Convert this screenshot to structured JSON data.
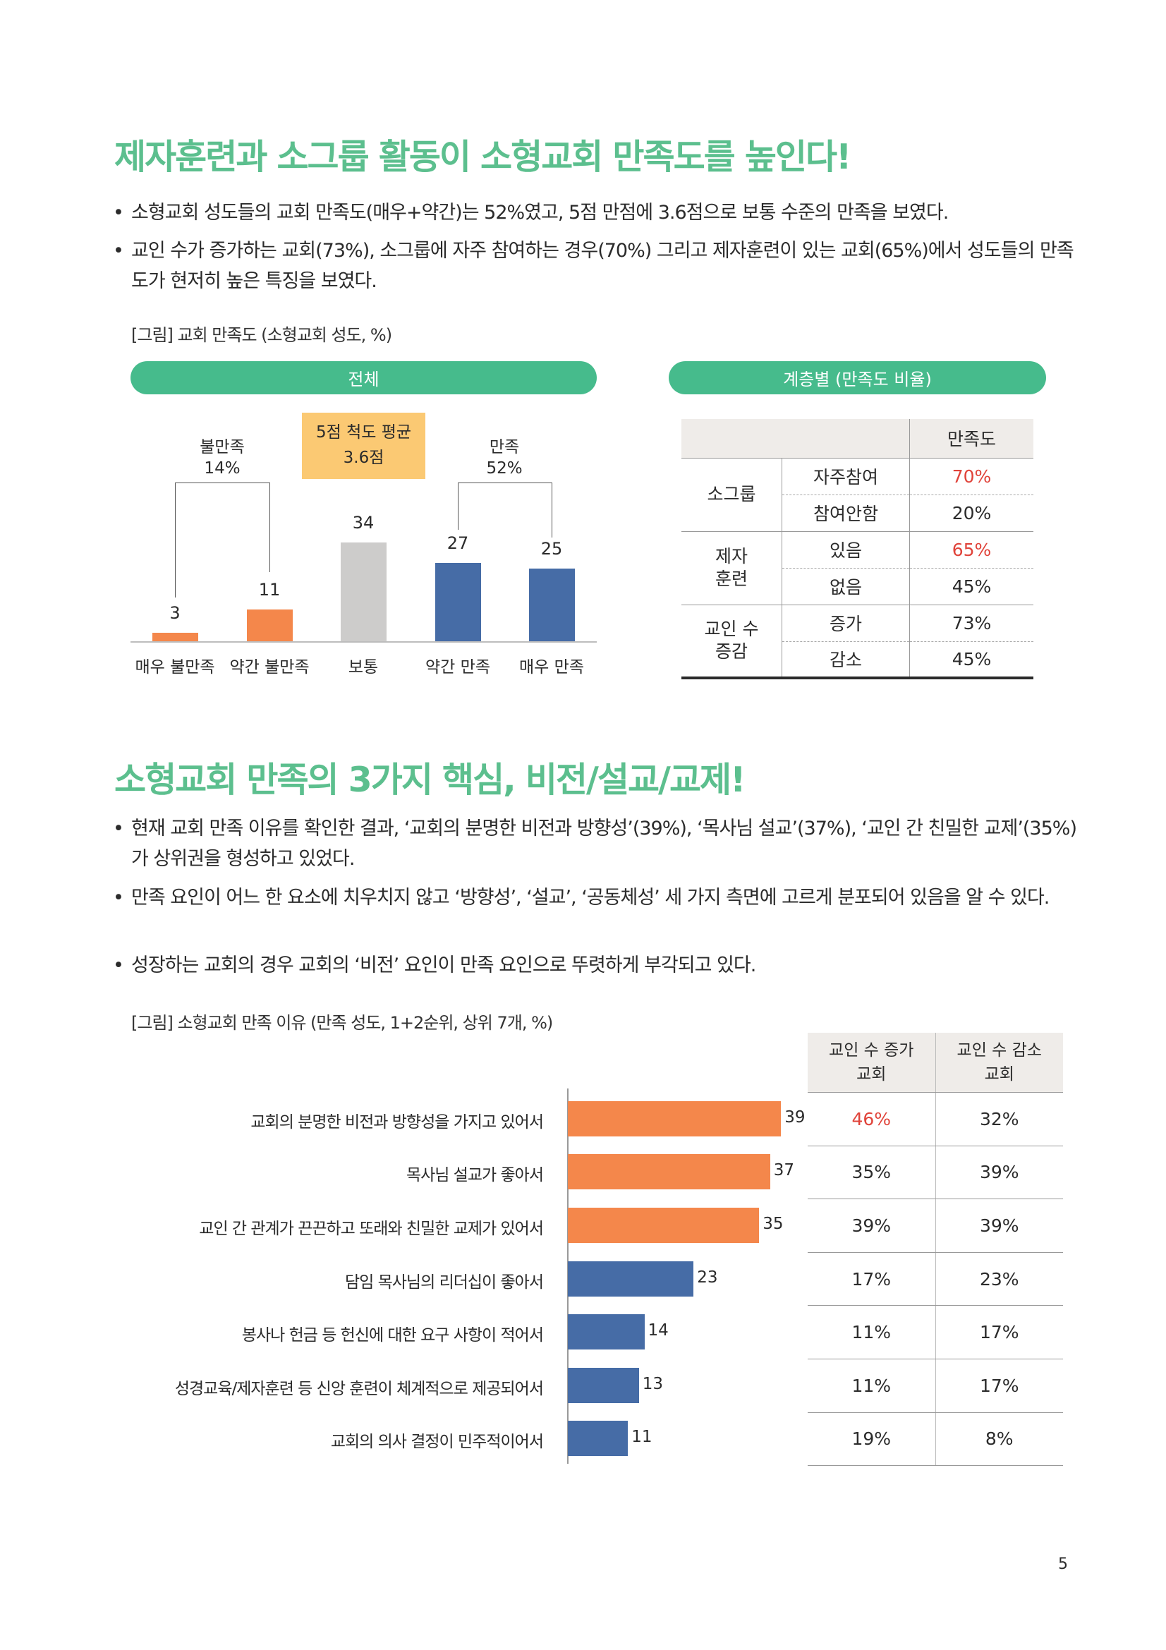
{
  "section1": {
    "title": "제자훈련과 소그룹 활동이 소형교회 만족도를 높인다!",
    "bullets": [
      "소형교회 성도들의 교회 만족도(매우+약간)는 52%였고, 5점 만점에 3.6점으로 보통 수준의 만족을 보였다.",
      "교인 수가 증가하는 교회(73%), 소그룹에 자주 참여하는 경우(70%) 그리고 제자훈련이 있는 교회(65%)에서 성도들의 만족도가 현저히 높은 특징을 보였다."
    ],
    "caption": "[그림] 교회 만족도 (소형교회 성도, %)",
    "pill_left": "전체",
    "pill_right": "계층별 (만족도 비율)",
    "avg_box": {
      "line1": "5점 척도 평균",
      "line2": "3.6점"
    },
    "groups": [
      {
        "label": "불만족",
        "value": "14%"
      },
      {
        "label": "만족",
        "value": "52%"
      }
    ],
    "strata_table": {
      "header": "만족도",
      "groups": [
        {
          "name": "소그룹",
          "rows": [
            {
              "label": "자주참여",
              "value": "70%",
              "highlight": true
            },
            {
              "label": "참여안함",
              "value": "20%",
              "highlight": false
            }
          ]
        },
        {
          "name": "제자\n훈련",
          "rows": [
            {
              "label": "있음",
              "value": "65%",
              "highlight": true
            },
            {
              "label": "없음",
              "value": "45%",
              "highlight": false
            }
          ]
        },
        {
          "name": "교인 수\n증감",
          "rows": [
            {
              "label": "증가",
              "value": "73%",
              "highlight": false
            },
            {
              "label": "감소",
              "value": "45%",
              "highlight": false
            }
          ]
        }
      ]
    }
  },
  "section2": {
    "title": "소형교회 만족의 3가지 핵심, 비전/설교/교제!",
    "bullets": [
      "현재 교회 만족 이유를 확인한 결과, ‘교회의 분명한 비전과 방향성’(39%), ‘목사님 설교’(37%), ‘교인 간 친밀한 교제’(35%)가 상위권을 형성하고 있었다.",
      "만족 요인이 어느 한 요소에 치우치지 않고 ‘방향성’, ‘설교’, ‘공동체성’ 세 가지 측면에 고르게 분포되어 있음을 알 수 있다.",
      "성장하는 교회의 경우 교회의 ‘비전’ 요인이 만족 요인으로 뚜렷하게 부각되고 있다."
    ],
    "caption": "[그림] 소형교회 만족 이유 (만족 성도, 1+2순위, 상위 7개, %)",
    "table_headers": [
      "교인 수 증가\n교회",
      "교인 수 감소\n교회"
    ],
    "table_rows": [
      {
        "inc": "46%",
        "dec": "32%",
        "highlight": true
      },
      {
        "inc": "35%",
        "dec": "39%",
        "highlight": false
      },
      {
        "inc": "39%",
        "dec": "39%",
        "highlight": false
      },
      {
        "inc": "17%",
        "dec": "23%",
        "highlight": false
      },
      {
        "inc": "11%",
        "dec": "17%",
        "highlight": false
      },
      {
        "inc": "11%",
        "dec": "17%",
        "highlight": false
      },
      {
        "inc": "19%",
        "dec": "8%",
        "highlight": false
      }
    ]
  },
  "page_number": "5",
  "colors": {
    "title": "#5cbf8e",
    "pill": "#46bb8c",
    "orange": "#f4874b",
    "blue": "#466ca6",
    "gray": "#cdcccb",
    "red": "#e0433a",
    "avg_box": "#fbc973",
    "table_header": "#efece9"
  },
  "chart_data": [
    {
      "type": "bar",
      "categories": [
        "매우 불만족",
        "약간 불만족",
        "보통",
        "약간 만족",
        "매우 만족"
      ],
      "values": [
        3,
        11,
        34,
        27,
        25
      ],
      "bar_colors": [
        "#f4874b",
        "#f4874b",
        "#cdcccb",
        "#466ca6",
        "#466ca6"
      ],
      "title": "",
      "xlabel": "",
      "ylabel": "",
      "ylim": [
        0,
        40
      ],
      "grid": false
    },
    {
      "type": "bar",
      "orientation": "horizontal",
      "categories": [
        "교회의 분명한 비전과 방향성을 가지고 있어서",
        "목사님 설교가 좋아서",
        "교인 간 관계가 끈끈하고 또래와 친밀한 교제가 있어서",
        "담임 목사님의 리더십이 좋아서",
        "봉사나 헌금 등 헌신에 대한 요구 사항이 적어서",
        "성경교육/제자훈련 등 신앙 훈련이 체계적으로 제공되어서",
        "교회의 의사 결정이 민주적이어서"
      ],
      "values": [
        39,
        37,
        35,
        23,
        14,
        13,
        11
      ],
      "bar_colors": [
        "#f4874b",
        "#f4874b",
        "#f4874b",
        "#466ca6",
        "#466ca6",
        "#466ca6",
        "#466ca6"
      ],
      "title": "",
      "xlabel": "",
      "ylabel": "",
      "xlim": [
        0,
        40
      ],
      "grid": false
    }
  ]
}
